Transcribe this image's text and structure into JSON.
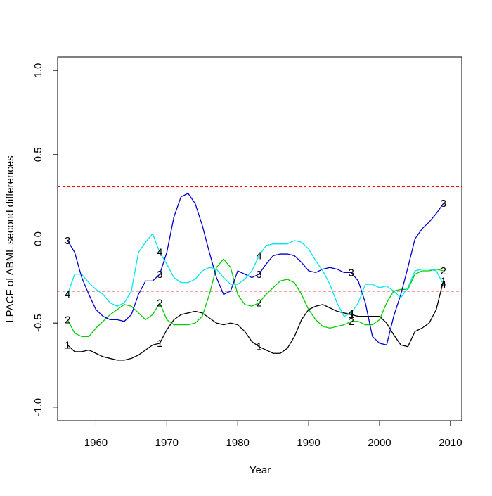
{
  "chart_data": {
    "type": "line",
    "x_label": "Year",
    "y_label": "LPACF of ABML second differences",
    "x": [
      1956,
      1957,
      1958,
      1959,
      1960,
      1961,
      1962,
      1963,
      1964,
      1965,
      1966,
      1967,
      1968,
      1969,
      1970,
      1971,
      1972,
      1973,
      1974,
      1975,
      1976,
      1977,
      1978,
      1979,
      1980,
      1981,
      1982,
      1983,
      1984,
      1985,
      1986,
      1987,
      1988,
      1989,
      1990,
      1991,
      1992,
      1993,
      1994,
      1995,
      1996,
      1997,
      1998,
      1999,
      2000,
      2001,
      2002,
      2003,
      2004,
      2005,
      2006,
      2007,
      2008,
      2009
    ],
    "series": [
      {
        "name": "1",
        "color": "#000000",
        "values": [
          -0.63,
          -0.67,
          -0.67,
          -0.66,
          -0.68,
          -0.7,
          -0.71,
          -0.72,
          -0.72,
          -0.71,
          -0.69,
          -0.66,
          -0.63,
          -0.62,
          -0.54,
          -0.48,
          -0.45,
          -0.44,
          -0.43,
          -0.44,
          -0.47,
          -0.5,
          -0.51,
          -0.5,
          -0.51,
          -0.55,
          -0.61,
          -0.64,
          -0.66,
          -0.68,
          -0.68,
          -0.65,
          -0.58,
          -0.48,
          -0.42,
          -0.4,
          -0.39,
          -0.41,
          -0.43,
          -0.44,
          -0.45,
          -0.46,
          -0.46,
          -0.46,
          -0.46,
          -0.5,
          -0.57,
          -0.63,
          -0.64,
          -0.55,
          -0.53,
          -0.5,
          -0.42,
          -0.25
        ]
      },
      {
        "name": "2",
        "color": "#00cd00",
        "values": [
          -0.48,
          -0.56,
          -0.58,
          -0.58,
          -0.53,
          -0.49,
          -0.45,
          -0.42,
          -0.39,
          -0.4,
          -0.44,
          -0.48,
          -0.45,
          -0.38,
          -0.48,
          -0.51,
          -0.51,
          -0.51,
          -0.5,
          -0.46,
          -0.33,
          -0.17,
          -0.12,
          -0.17,
          -0.33,
          -0.39,
          -0.4,
          -0.38,
          -0.33,
          -0.29,
          -0.25,
          -0.24,
          -0.26,
          -0.33,
          -0.42,
          -0.48,
          -0.52,
          -0.53,
          -0.52,
          -0.51,
          -0.49,
          -0.49,
          -0.51,
          -0.51,
          -0.48,
          -0.38,
          -0.31,
          -0.3,
          -0.3,
          -0.21,
          -0.19,
          -0.19,
          -0.18,
          -0.19
        ]
      },
      {
        "name": "3",
        "color": "#0000cd",
        "values": [
          -0.01,
          -0.08,
          -0.23,
          -0.33,
          -0.42,
          -0.46,
          -0.48,
          -0.48,
          -0.49,
          -0.45,
          -0.33,
          -0.25,
          -0.25,
          -0.21,
          -0.08,
          0.13,
          0.25,
          0.27,
          0.21,
          0.08,
          -0.08,
          -0.23,
          -0.33,
          -0.31,
          -0.19,
          -0.21,
          -0.23,
          -0.21,
          -0.15,
          -0.1,
          -0.09,
          -0.09,
          -0.1,
          -0.14,
          -0.19,
          -0.2,
          -0.18,
          -0.17,
          -0.18,
          -0.2,
          -0.2,
          -0.25,
          -0.38,
          -0.58,
          -0.62,
          -0.63,
          -0.46,
          -0.33,
          -0.17,
          0.0,
          0.06,
          0.1,
          0.15,
          0.21
        ]
      },
      {
        "name": "4",
        "color": "#00e5ee",
        "values": [
          -0.33,
          -0.21,
          -0.21,
          -0.26,
          -0.3,
          -0.33,
          -0.38,
          -0.4,
          -0.38,
          -0.31,
          -0.08,
          -0.02,
          0.03,
          -0.08,
          -0.15,
          -0.23,
          -0.26,
          -0.26,
          -0.24,
          -0.19,
          -0.17,
          -0.18,
          -0.23,
          -0.27,
          -0.27,
          -0.24,
          -0.19,
          -0.1,
          -0.04,
          -0.03,
          -0.03,
          -0.03,
          -0.01,
          -0.02,
          -0.06,
          -0.13,
          -0.19,
          -0.27,
          -0.38,
          -0.46,
          -0.44,
          -0.38,
          -0.27,
          -0.27,
          -0.29,
          -0.28,
          -0.31,
          -0.35,
          -0.29,
          -0.19,
          -0.18,
          -0.18,
          -0.19,
          -0.27
        ]
      }
    ],
    "reference_lines": [
      0.31,
      -0.31
    ],
    "reference_color": "#ff0000",
    "xlim": [
      1954.6,
      2011.6
    ],
    "ylim": [
      -1.08,
      1.08
    ],
    "xticks": [
      1960,
      1970,
      1980,
      1990,
      2000,
      2010
    ],
    "yticks": [
      {
        "value": -1,
        "label": "-1.0"
      },
      -0.5,
      {
        "value": 0,
        "label": "0.0"
      },
      0.5,
      {
        "value": 1,
        "label": "1.0"
      }
    ]
  }
}
